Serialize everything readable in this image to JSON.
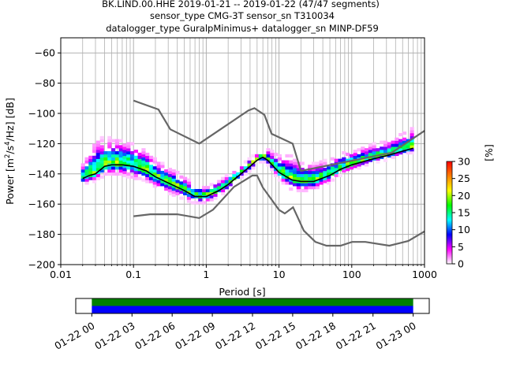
{
  "chart_data": {
    "type": "heatmap",
    "title_lines": [
      "BK.LIND.00.HHE   2019-01-21 -- 2019-01-22  (47/47 segments)",
      "sensor_type CMG-3T sensor_sn T310034",
      "datalogger_type GuralpMinimus+ datalogger_sn MINP-DF59"
    ],
    "xlabel": "Period [s]",
    "ylabel_parts": {
      "pre": "Power [m",
      "sup1": "2",
      "mid": "/s",
      "sup2": "4",
      "post": "/Hz] [dB]"
    },
    "x_scale": "log",
    "xlim": [
      0.01,
      1000
    ],
    "ylim": [
      -200,
      -50
    ],
    "x_ticks": [
      {
        "value": 0.01,
        "label": "0.01"
      },
      {
        "value": 0.1,
        "label": "0.1"
      },
      {
        "value": 1,
        "label": "1"
      },
      {
        "value": 10,
        "label": "10"
      },
      {
        "value": 100,
        "label": "100"
      },
      {
        "value": 1000,
        "label": "1000"
      }
    ],
    "y_ticks": [
      {
        "value": -60,
        "label": "−60"
      },
      {
        "value": -80,
        "label": "−80"
      },
      {
        "value": -100,
        "label": "−100"
      },
      {
        "value": -120,
        "label": "−120"
      },
      {
        "value": -140,
        "label": "−140"
      },
      {
        "value": -160,
        "label": "−160"
      },
      {
        "value": -180,
        "label": "−180"
      },
      {
        "value": -200,
        "label": "−200"
      }
    ],
    "grid": true,
    "colorbar": {
      "label": "[%]",
      "range": [
        0,
        30
      ],
      "ticks": [
        {
          "value": 0,
          "label": "0"
        },
        {
          "value": 5,
          "label": "5"
        },
        {
          "value": 10,
          "label": "10"
        },
        {
          "value": 15,
          "label": "15"
        },
        {
          "value": 20,
          "label": "20"
        },
        {
          "value": 25,
          "label": "25"
        },
        {
          "value": 30,
          "label": "30"
        }
      ],
      "colors": [
        "#ffffff",
        "#ff00ff",
        "#0000ff",
        "#00ffff",
        "#00ff00",
        "#ffff00",
        "#ff8000",
        "#ff0000"
      ]
    },
    "nhnm": {
      "periods": [
        0.1,
        0.22,
        0.32,
        0.8,
        3.8,
        4.6,
        6.3,
        7.9,
        15.4,
        20,
        354.8,
        1000
      ],
      "values": [
        -91.5,
        -97.4,
        -110.5,
        -120,
        -98,
        -96.5,
        -101,
        -113.5,
        -120,
        -138,
        -126,
        -111.5
      ]
    },
    "nlnm": {
      "periods": [
        0.1,
        0.17,
        0.4,
        0.8,
        1.24,
        2.4,
        4.3,
        5,
        6,
        10,
        12,
        15.6,
        21.9,
        31.6,
        45,
        70,
        101,
        154,
        328,
        600,
        1000
      ],
      "values": [
        -168,
        -166.7,
        -166.7,
        -169.2,
        -163.7,
        -148.6,
        -141.1,
        -141.1,
        -149,
        -163.8,
        -166.2,
        -162.1,
        -177.5,
        -185,
        -187.5,
        -187.5,
        -185,
        -185,
        -187.5,
        -184.4,
        -178
      ]
    },
    "mean_curve": {
      "periods": [
        0.02,
        0.025,
        0.03,
        0.04,
        0.05,
        0.07,
        0.1,
        0.15,
        0.2,
        0.3,
        0.5,
        0.7,
        1,
        1.5,
        2,
        3,
        4,
        5,
        6,
        7,
        10,
        15,
        20,
        30,
        50,
        70,
        100,
        200,
        300,
        500,
        700
      ],
      "values": [
        -143,
        -141,
        -140,
        -135,
        -134,
        -134,
        -135,
        -138,
        -142,
        -146,
        -151,
        -155,
        -155,
        -151,
        -147,
        -140,
        -135,
        -131,
        -129,
        -131,
        -139,
        -144,
        -145,
        -145,
        -141,
        -137,
        -134,
        -130,
        -128,
        -125,
        -123
      ]
    },
    "spread": {
      "periods": [
        0.02,
        0.025,
        0.03,
        0.04,
        0.05,
        0.07,
        0.1,
        0.15,
        0.2,
        0.3,
        0.5,
        0.7,
        1,
        1.5,
        2,
        3,
        4,
        5,
        6,
        7,
        10,
        15,
        20,
        30,
        50,
        70,
        100,
        200,
        300,
        500,
        700
      ],
      "upper": [
        8,
        14,
        20,
        18,
        16,
        15,
        14,
        12,
        10,
        9,
        8,
        6,
        5,
        5,
        5,
        4,
        4,
        3,
        3,
        6,
        10,
        14,
        12,
        10,
        9,
        9,
        8,
        8,
        8,
        10,
        12
      ],
      "lower": [
        4,
        5,
        5,
        6,
        7,
        7,
        8,
        7,
        7,
        7,
        6,
        5,
        5,
        4,
        4,
        3,
        3,
        3,
        3,
        3,
        5,
        7,
        7,
        6,
        5,
        4,
        4,
        3,
        3,
        3,
        3
      ]
    },
    "timeline": {
      "tick_labels": [
        "01-22 00",
        "01-22 03",
        "01-22 06",
        "01-22 09",
        "01-22 12",
        "01-22 15",
        "01-22 18",
        "01-22 21",
        "01-23 00"
      ],
      "tick_hours": [
        0,
        3,
        6,
        9,
        12,
        15,
        18,
        21,
        24
      ],
      "axis_hours": [
        -1.2,
        25.2
      ],
      "bars": [
        {
          "color": "#008000",
          "start_hour": 0,
          "end_hour": 24
        },
        {
          "color": "#0000ff",
          "start_hour": 0,
          "end_hour": 24
        }
      ]
    }
  }
}
